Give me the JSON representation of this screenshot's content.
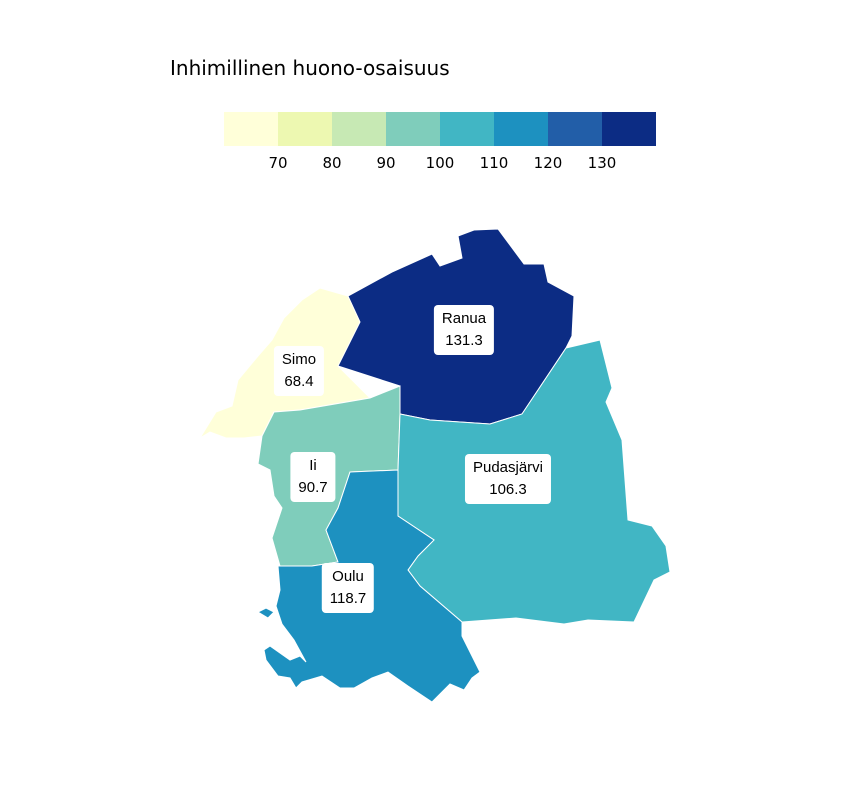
{
  "legend": {
    "title": "Inhimillinen huono-osaisuus",
    "colors": [
      "#ffffd9",
      "#edf8b1",
      "#c7e9b4",
      "#7fcdbb",
      "#41b6c4",
      "#1d91c0",
      "#225ea8",
      "#0c2c84"
    ],
    "ticks": [
      "70",
      "80",
      "90",
      "100",
      "110",
      "120",
      "130"
    ]
  },
  "map": {
    "regions": [
      {
        "name": "Ranua",
        "value": "131.3",
        "color": "#0c2c84"
      },
      {
        "name": "Simo",
        "value": "68.4",
        "color": "#ffffd9"
      },
      {
        "name": "Ii",
        "value": "90.7",
        "color": "#7fcdbb"
      },
      {
        "name": "Pudasjärvi",
        "value": "106.3",
        "color": "#41b6c4"
      },
      {
        "name": "Oulu",
        "value": "118.7",
        "color": "#1d91c0"
      }
    ]
  }
}
